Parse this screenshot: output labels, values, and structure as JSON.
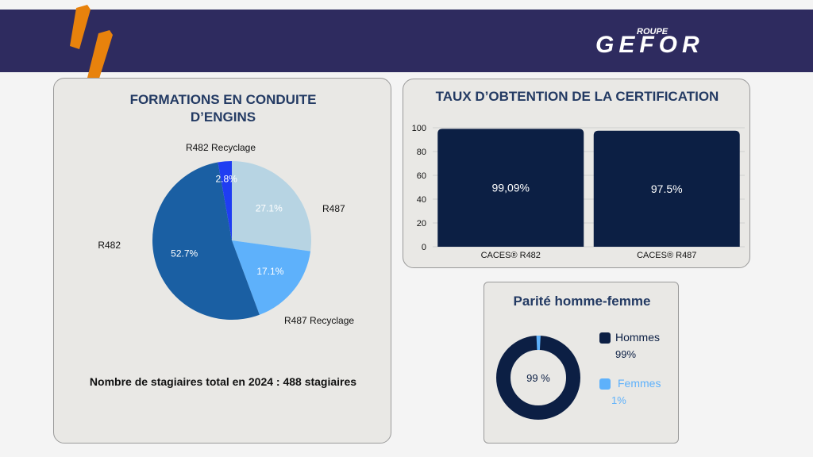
{
  "header": {
    "brand_top": "ROUPE",
    "brand_main": "GEFOR",
    "accent_color": "#e8820c",
    "banner_color": "#2e2b5f"
  },
  "formations": {
    "title_line1": "FORMATIONS EN CONDUITE",
    "title_line2": "D’ENGINS",
    "total_text": "Nombre de stagiaires total en 2024 : 488 stagiaires",
    "chart_data": {
      "type": "pie",
      "slices": [
        {
          "label": "R487",
          "value": 27.1,
          "value_label": "27.1%",
          "color": "#b7d4e3"
        },
        {
          "label": "R487 Recyclage",
          "value": 17.1,
          "value_label": "17.1%",
          "color": "#5eb1fb"
        },
        {
          "label": "R482",
          "value": 52.7,
          "value_label": "52.7%",
          "color": "#1a5fa3"
        },
        {
          "label": "R482 Recyclage",
          "value": 2.8,
          "value_label": "2.8%",
          "color": "#1f3df2"
        }
      ]
    }
  },
  "certification": {
    "title": "TAUX D’OBTENTION DE LA CERTIFICATION",
    "chart_data": {
      "type": "bar",
      "categories": [
        "CACES® R482",
        "CACES® R487"
      ],
      "values": [
        99.09,
        97.5
      ],
      "value_labels": [
        "99,09%",
        "97.5%"
      ],
      "ylim": [
        0,
        100
      ],
      "yticks": [
        0,
        20,
        40,
        60,
        80,
        100
      ],
      "bar_color": "#0c1f44"
    }
  },
  "parite": {
    "title": "Parité  homme-femme",
    "center_label": "99 %",
    "chart_data": {
      "type": "donut",
      "slices": [
        {
          "label": "Hommes",
          "value": 99,
          "value_label": "99%",
          "color": "#0c1f44"
        },
        {
          "label": "Femmes",
          "value": 1,
          "value_label": "1%",
          "color": "#5eb1fb"
        }
      ]
    }
  }
}
